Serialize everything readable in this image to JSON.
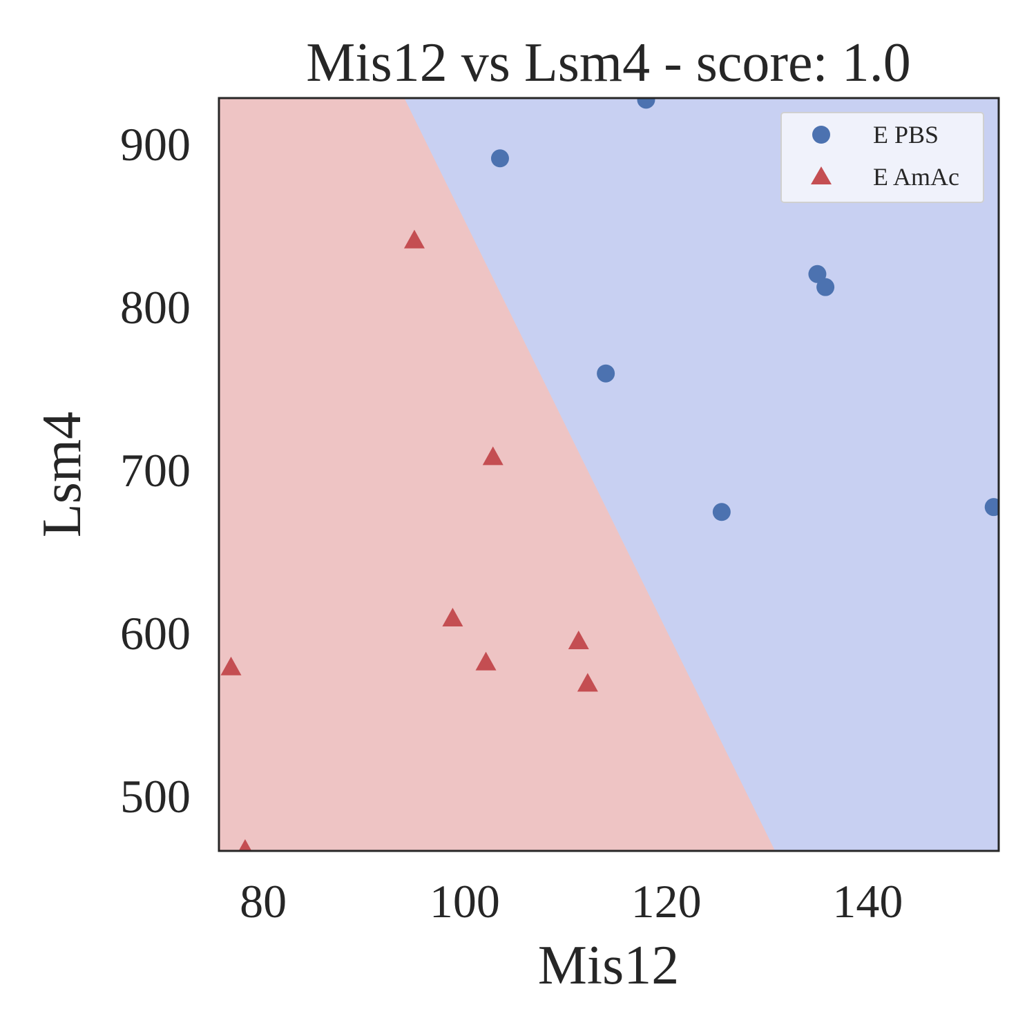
{
  "chart_data": {
    "type": "scatter",
    "title": "Mis12 vs Lsm4 - score: 1.0",
    "xlabel": "Mis12",
    "ylabel": "Lsm4",
    "xlim": [
      75.6,
      153.0
    ],
    "ylim": [
      466,
      928
    ],
    "xticks": [
      80,
      100,
      120,
      140
    ],
    "yticks": [
      500,
      600,
      700,
      800,
      900
    ],
    "grid": false,
    "legend_position": "top-right",
    "decision_boundary": {
      "description": "linear classifier regions",
      "line_points": [
        [
          94.0,
          928
        ],
        [
          130.8,
          466
        ]
      ],
      "region_colors": {
        "E PBS": "#c8d0f2",
        "E AmAc": "#eec4c4"
      }
    },
    "series": [
      {
        "name": "E PBS",
        "marker": "circle",
        "color": "#4c72b0",
        "points": [
          [
            118.0,
            927
          ],
          [
            103.5,
            891
          ],
          [
            135.0,
            820
          ],
          [
            135.8,
            812
          ],
          [
            114.0,
            759
          ],
          [
            125.5,
            674
          ],
          [
            152.5,
            677
          ]
        ]
      },
      {
        "name": "E AmAc",
        "marker": "triangle",
        "color": "#c44e52",
        "points": [
          [
            95.0,
            840
          ],
          [
            102.8,
            707
          ],
          [
            98.8,
            608
          ],
          [
            102.1,
            581
          ],
          [
            111.3,
            594
          ],
          [
            112.2,
            568
          ],
          [
            76.8,
            578
          ],
          [
            78.2,
            466
          ]
        ]
      }
    ]
  }
}
